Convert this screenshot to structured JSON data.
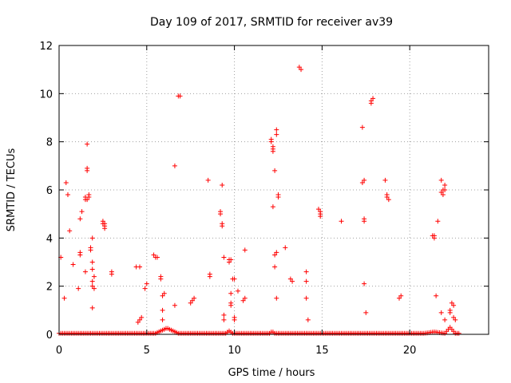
{
  "chart_data": {
    "type": "scatter",
    "title": "Day 109 of 2017, SRMTID for receiver av39",
    "xlabel": "GPS time / hours",
    "ylabel": "SRMTID / TECUs",
    "xlim": [
      0,
      24.5
    ],
    "ylim": [
      0,
      12
    ],
    "xticks": [
      0,
      5,
      10,
      15,
      20
    ],
    "yticks": [
      0,
      2,
      4,
      6,
      8,
      10,
      12
    ],
    "grid": true,
    "marker": "+",
    "series": [
      {
        "color": "#ff0000",
        "points": [
          [
            0.1,
            3.2
          ],
          [
            0.3,
            1.5
          ],
          [
            0.4,
            6.3
          ],
          [
            0.5,
            5.8
          ],
          [
            0.6,
            4.3
          ],
          [
            0.8,
            2.9
          ],
          [
            1.1,
            1.9
          ],
          [
            1.2,
            3.3
          ],
          [
            1.2,
            3.4
          ],
          [
            1.2,
            4.8
          ],
          [
            1.3,
            5.1
          ],
          [
            1.5,
            2.6
          ],
          [
            1.5,
            5.6
          ],
          [
            1.5,
            5.7
          ],
          [
            1.6,
            5.6
          ],
          [
            1.6,
            6.8
          ],
          [
            1.6,
            6.9
          ],
          [
            1.6,
            7.9
          ],
          [
            1.7,
            5.7
          ],
          [
            1.7,
            5.8
          ],
          [
            1.8,
            3.5
          ],
          [
            1.8,
            3.6
          ],
          [
            1.9,
            4.0
          ],
          [
            1.9,
            3.0
          ],
          [
            1.9,
            2.7
          ],
          [
            1.9,
            2.2
          ],
          [
            1.9,
            2.0
          ],
          [
            1.9,
            1.1
          ],
          [
            2.0,
            1.9
          ],
          [
            2.0,
            2.4
          ],
          [
            2.5,
            4.7
          ],
          [
            2.5,
            4.6
          ],
          [
            2.6,
            4.6
          ],
          [
            2.6,
            4.5
          ],
          [
            2.6,
            4.4
          ],
          [
            3.0,
            2.5
          ],
          [
            3.0,
            2.6
          ],
          [
            4.4,
            2.8
          ],
          [
            4.5,
            0.5
          ],
          [
            4.6,
            2.8
          ],
          [
            4.6,
            0.6
          ],
          [
            4.7,
            0.7
          ],
          [
            4.9,
            1.9
          ],
          [
            5.0,
            2.1
          ],
          [
            5.4,
            3.3
          ],
          [
            5.5,
            3.2
          ],
          [
            5.6,
            3.2
          ],
          [
            5.8,
            2.4
          ],
          [
            5.8,
            2.3
          ],
          [
            5.9,
            1.6
          ],
          [
            5.9,
            1.0
          ],
          [
            5.9,
            0.6
          ],
          [
            6.0,
            1.7
          ],
          [
            6.6,
            7.0
          ],
          [
            6.6,
            1.2
          ],
          [
            6.8,
            9.9
          ],
          [
            6.9,
            9.9
          ],
          [
            7.5,
            1.3
          ],
          [
            7.6,
            1.4
          ],
          [
            7.7,
            1.5
          ],
          [
            8.5,
            6.4
          ],
          [
            8.6,
            2.5
          ],
          [
            8.6,
            2.4
          ],
          [
            9.2,
            5.1
          ],
          [
            9.2,
            5.0
          ],
          [
            9.3,
            4.6
          ],
          [
            9.3,
            4.5
          ],
          [
            9.3,
            6.2
          ],
          [
            9.4,
            3.2
          ],
          [
            9.4,
            0.8
          ],
          [
            9.4,
            0.6
          ],
          [
            9.7,
            3.1
          ],
          [
            9.7,
            3.0
          ],
          [
            9.8,
            3.1
          ],
          [
            9.8,
            1.7
          ],
          [
            9.8,
            1.3
          ],
          [
            9.8,
            1.2
          ],
          [
            9.9,
            2.3
          ],
          [
            10.0,
            2.3
          ],
          [
            10.0,
            0.7
          ],
          [
            10.0,
            0.6
          ],
          [
            10.2,
            1.8
          ],
          [
            10.5,
            1.4
          ],
          [
            10.6,
            1.5
          ],
          [
            10.6,
            3.5
          ],
          [
            12.1,
            8.1
          ],
          [
            12.1,
            8.0
          ],
          [
            12.2,
            7.8
          ],
          [
            12.2,
            7.7
          ],
          [
            12.2,
            7.6
          ],
          [
            12.2,
            5.3
          ],
          [
            12.3,
            2.8
          ],
          [
            12.3,
            3.3
          ],
          [
            12.3,
            6.8
          ],
          [
            12.4,
            8.3
          ],
          [
            12.4,
            8.5
          ],
          [
            12.4,
            3.4
          ],
          [
            12.4,
            1.5
          ],
          [
            12.5,
            5.8
          ],
          [
            12.5,
            5.7
          ],
          [
            12.9,
            3.6
          ],
          [
            13.2,
            2.3
          ],
          [
            13.3,
            2.2
          ],
          [
            13.7,
            11.1
          ],
          [
            13.8,
            11.0
          ],
          [
            14.1,
            2.6
          ],
          [
            14.1,
            2.2
          ],
          [
            14.1,
            1.5
          ],
          [
            14.2,
            0.6
          ],
          [
            14.8,
            5.2
          ],
          [
            14.9,
            5.1
          ],
          [
            14.9,
            5.0
          ],
          [
            14.9,
            4.9
          ],
          [
            16.1,
            4.7
          ],
          [
            17.3,
            8.6
          ],
          [
            17.3,
            6.3
          ],
          [
            17.4,
            6.4
          ],
          [
            17.4,
            4.8
          ],
          [
            17.4,
            4.7
          ],
          [
            17.4,
            2.1
          ],
          [
            17.5,
            0.9
          ],
          [
            17.8,
            9.7
          ],
          [
            17.8,
            9.6
          ],
          [
            17.9,
            9.8
          ],
          [
            18.6,
            6.4
          ],
          [
            18.7,
            5.8
          ],
          [
            18.7,
            5.7
          ],
          [
            18.8,
            5.6
          ],
          [
            19.4,
            1.5
          ],
          [
            19.5,
            1.6
          ],
          [
            21.3,
            4.1
          ],
          [
            21.4,
            4.0
          ],
          [
            21.4,
            4.1
          ],
          [
            21.5,
            1.6
          ],
          [
            21.6,
            4.7
          ],
          [
            21.8,
            0.9
          ],
          [
            21.8,
            5.9
          ],
          [
            21.8,
            6.4
          ],
          [
            21.9,
            6.0
          ],
          [
            21.9,
            5.8
          ],
          [
            22.0,
            6.2
          ],
          [
            22.0,
            6.0
          ],
          [
            22.0,
            0.6
          ],
          [
            22.3,
            1.0
          ],
          [
            22.3,
            0.9
          ],
          [
            22.4,
            1.3
          ],
          [
            22.5,
            1.2
          ],
          [
            22.5,
            0.7
          ],
          [
            22.6,
            0.6
          ]
        ],
        "baseline": {
          "x_start": 0.0,
          "x_end": 22.75,
          "step": 0.1,
          "y": 0.04,
          "bumps": [
            [
              5.5,
              6.8,
              0.22
            ],
            [
              9.5,
              9.9,
              0.1
            ],
            [
              12.0,
              12.3,
              0.08
            ],
            [
              20.8,
              22.0,
              0.06
            ],
            [
              22.0,
              22.6,
              0.25
            ]
          ]
        }
      }
    ]
  }
}
